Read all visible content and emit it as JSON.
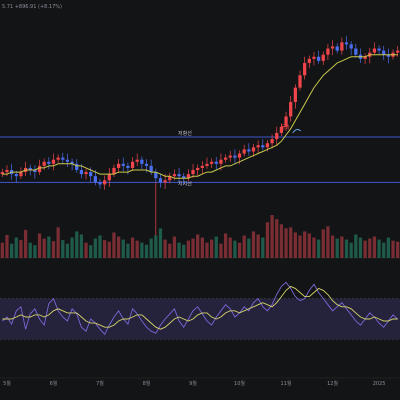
{
  "header": {
    "info_text": "5.71  +896.91 (+8.17%)"
  },
  "annotations": {
    "resistance_label": "저항선",
    "support_label": "지지선",
    "breakout_label": "돌파"
  },
  "x_axis": {
    "ticks": [
      "5월",
      "6월",
      "7월",
      "8월",
      "9월",
      "10월",
      "11월",
      "12월",
      "2025"
    ]
  },
  "colors": {
    "background": "#131416",
    "up_candle": "#f0454b",
    "down_candle": "#4b6ff0",
    "moving_average": "#c9c94a",
    "level_line": "#3f56d0",
    "oscillator": "#7c67d8",
    "oscillator_signal": "#d4d36a",
    "oscillator_band": "#2b2646",
    "volume_up": "#7a2e33",
    "volume_down": "#1f5b4a"
  },
  "chart_data": {
    "type": "line",
    "description_series": [
      {
        "name": "",
        "values": [
          41,
          42,
          40,
          39,
          41,
          43,
          42,
          41,
          44,
          46,
          45,
          47,
          48,
          47,
          46,
          45,
          42,
          40,
          41,
          39,
          36,
          35,
          37,
          40,
          43,
          45,
          44,
          43,
          46,
          47,
          45,
          44,
          41,
          38,
          36,
          37,
          39,
          40,
          39,
          38,
          40,
          42,
          43,
          44,
          45,
          46,
          45,
          47,
          48,
          49,
          48,
          50,
          52,
          51,
          53,
          54,
          53,
          55,
          57,
          60,
          63,
          68,
          75,
          82,
          88,
          94,
          96,
          97,
          95,
          98,
          101,
          102,
          100,
          104,
          103,
          101,
          98,
          96,
          97,
          99,
          101,
          100,
          98,
          97,
          99,
          100
        ]
      }
    ],
    "ma_values": [
      40,
      40,
      41,
      41,
      41,
      42,
      42,
      42,
      43,
      43,
      44,
      44,
      45,
      45,
      45,
      45,
      44,
      44,
      43,
      42,
      41,
      40,
      40,
      40,
      40,
      41,
      41,
      41,
      42,
      42,
      42,
      42,
      41,
      41,
      40,
      39,
      39,
      38,
      38,
      38,
      38,
      39,
      39,
      40,
      41,
      41,
      42,
      43,
      44,
      44,
      45,
      46,
      47,
      48,
      49,
      50,
      51,
      52,
      53,
      54,
      56,
      59,
      62,
      66,
      70,
      74,
      78,
      82,
      85,
      88,
      90,
      92,
      94,
      95,
      96,
      97,
      97,
      97,
      97,
      98,
      98,
      98,
      98,
      98,
      98,
      98
    ],
    "resistance_level": 58,
    "support_level": 36,
    "volume": [
      30,
      45,
      28,
      40,
      35,
      55,
      30,
      25,
      48,
      38,
      42,
      33,
      60,
      35,
      28,
      40,
      52,
      46,
      30,
      25,
      38,
      44,
      35,
      32,
      50,
      42,
      36,
      28,
      40,
      34,
      30,
      26,
      38,
      44,
      58,
      36,
      28,
      42,
      30,
      26,
      34,
      38,
      46,
      40,
      30,
      36,
      42,
      28,
      48,
      40,
      34,
      30,
      44,
      38,
      52,
      46,
      40,
      70,
      84,
      76,
      66,
      58,
      60,
      50,
      44,
      52,
      48,
      40,
      36,
      56,
      62,
      44,
      38,
      42,
      36,
      30,
      46,
      40,
      34,
      38,
      42,
      36,
      30,
      40,
      34,
      32
    ],
    "oscillator": [
      48,
      52,
      45,
      58,
      62,
      40,
      55,
      60,
      50,
      44,
      65,
      70,
      58,
      52,
      48,
      60,
      55,
      42,
      38,
      50,
      46,
      40,
      35,
      44,
      52,
      58,
      50,
      45,
      60,
      55,
      48,
      42,
      38,
      36,
      44,
      50,
      55,
      60,
      48,
      42,
      50,
      58,
      62,
      55,
      48,
      44,
      52,
      58,
      64,
      60,
      52,
      56,
      62,
      58,
      66,
      70,
      62,
      58,
      64,
      74,
      82,
      86,
      80,
      72,
      68,
      70,
      78,
      84,
      76,
      70,
      64,
      58,
      62,
      66,
      60,
      54,
      48,
      44,
      50,
      56,
      52,
      46,
      42,
      48,
      54,
      50
    ],
    "oscillator_signal": [
      50,
      50,
      50,
      52,
      54,
      52,
      52,
      54,
      54,
      52,
      54,
      58,
      60,
      58,
      56,
      56,
      56,
      52,
      48,
      46,
      46,
      44,
      42,
      42,
      44,
      48,
      50,
      50,
      52,
      54,
      54,
      50,
      46,
      42,
      40,
      42,
      46,
      50,
      52,
      50,
      48,
      50,
      54,
      56,
      56,
      52,
      50,
      52,
      56,
      58,
      58,
      56,
      58,
      60,
      62,
      64,
      66,
      64,
      62,
      66,
      72,
      78,
      82,
      80,
      76,
      72,
      72,
      76,
      80,
      78,
      74,
      68,
      64,
      62,
      62,
      60,
      56,
      52,
      50,
      50,
      52,
      50,
      48,
      48,
      50,
      50
    ]
  }
}
